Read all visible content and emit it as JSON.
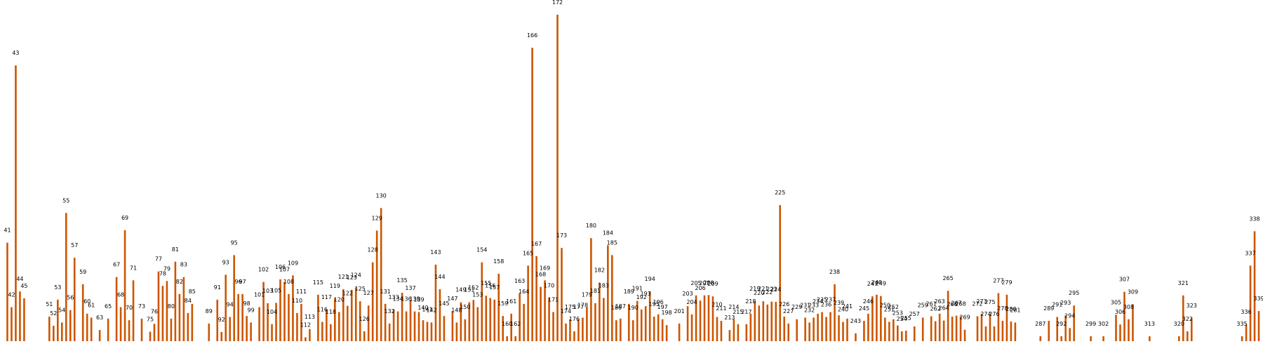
{
  "colors": {
    "bar": "#cc5500",
    "label": "#000000",
    "background": "#ffffff"
  },
  "chart_data": {
    "type": "bar",
    "title": "",
    "xlabel": "",
    "ylabel": "",
    "grid": false,
    "axes_visible": false,
    "ylim": [
      0,
      1
    ],
    "x_range": [
      39.25,
      340.0
    ],
    "points": [
      [
        41,
        0.301
      ],
      [
        42,
        0.104
      ],
      [
        43,
        0.843
      ],
      [
        44,
        0.152
      ],
      [
        45,
        0.131
      ],
      [
        51,
        0.075
      ],
      [
        52,
        0.047
      ],
      [
        53,
        0.127
      ],
      [
        54,
        0.057
      ],
      [
        55,
        0.392
      ],
      [
        56,
        0.095
      ],
      [
        57,
        0.255
      ],
      [
        59,
        0.174
      ],
      [
        60,
        0.084
      ],
      [
        61,
        0.072
      ],
      [
        63,
        0.034
      ],
      [
        65,
        0.069
      ],
      [
        67,
        0.196
      ],
      [
        68,
        0.104
      ],
      [
        69,
        0.339
      ],
      [
        70,
        0.064
      ],
      [
        71,
        0.186
      ],
      [
        73,
        0.069
      ],
      [
        75,
        0.029
      ],
      [
        76,
        0.053
      ],
      [
        77,
        0.213
      ],
      [
        78,
        0.169
      ],
      [
        79,
        0.184
      ],
      [
        80,
        0.069
      ],
      [
        81,
        0.243
      ],
      [
        82,
        0.144
      ],
      [
        83,
        0.196
      ],
      [
        84,
        0.086
      ],
      [
        85,
        0.114
      ],
      [
        89,
        0.054
      ],
      [
        91,
        0.127
      ],
      [
        92,
        0.028
      ],
      [
        93,
        0.203
      ],
      [
        94,
        0.074
      ],
      [
        95,
        0.263
      ],
      [
        96,
        0.144
      ],
      [
        97,
        0.144
      ],
      [
        98,
        0.077
      ],
      [
        99,
        0.057
      ],
      [
        101,
        0.104
      ],
      [
        102,
        0.181
      ],
      [
        103,
        0.116
      ],
      [
        104,
        0.052
      ],
      [
        105,
        0.117
      ],
      [
        106,
        0.189
      ],
      [
        107,
        0.181
      ],
      [
        108,
        0.144
      ],
      [
        109,
        0.201
      ],
      [
        110,
        0.086
      ],
      [
        111,
        0.114
      ],
      [
        112,
        0.012
      ],
      [
        113,
        0.037
      ],
      [
        115,
        0.142
      ],
      [
        116,
        0.059
      ],
      [
        117,
        0.097
      ],
      [
        118,
        0.052
      ],
      [
        119,
        0.131
      ],
      [
        120,
        0.089
      ],
      [
        121,
        0.159
      ],
      [
        122,
        0.108
      ],
      [
        123,
        0.157
      ],
      [
        124,
        0.164
      ],
      [
        125,
        0.122
      ],
      [
        126,
        0.03
      ],
      [
        127,
        0.109
      ],
      [
        128,
        0.241
      ],
      [
        129,
        0.338
      ],
      [
        130,
        0.407
      ],
      [
        131,
        0.114
      ],
      [
        132,
        0.054
      ],
      [
        133,
        0.097
      ],
      [
        134,
        0.091
      ],
      [
        135,
        0.148
      ],
      [
        136,
        0.091
      ],
      [
        137,
        0.124
      ],
      [
        138,
        0.091
      ],
      [
        139,
        0.089
      ],
      [
        140,
        0.064
      ],
      [
        141,
        0.059
      ],
      [
        142,
        0.057
      ],
      [
        143,
        0.234
      ],
      [
        144,
        0.159
      ],
      [
        145,
        0.077
      ],
      [
        147,
        0.092
      ],
      [
        148,
        0.057
      ],
      [
        149,
        0.119
      ],
      [
        150,
        0.067
      ],
      [
        151,
        0.119
      ],
      [
        152,
        0.126
      ],
      [
        153,
        0.104
      ],
      [
        154,
        0.241
      ],
      [
        155,
        0.139
      ],
      [
        156,
        0.132
      ],
      [
        157,
        0.127
      ],
      [
        158,
        0.206
      ],
      [
        159,
        0.077
      ],
      [
        160,
        0.015
      ],
      [
        161,
        0.084
      ],
      [
        162,
        0.015
      ],
      [
        163,
        0.146
      ],
      [
        164,
        0.114
      ],
      [
        165,
        0.231
      ],
      [
        166,
        0.897
      ],
      [
        167,
        0.26
      ],
      [
        168,
        0.166
      ],
      [
        169,
        0.186
      ],
      [
        170,
        0.132
      ],
      [
        171,
        0.089
      ],
      [
        172,
        0.998
      ],
      [
        173,
        0.285
      ],
      [
        174,
        0.054
      ],
      [
        175,
        0.067
      ],
      [
        176,
        0.03
      ],
      [
        177,
        0.067
      ],
      [
        178,
        0.072
      ],
      [
        179,
        0.104
      ],
      [
        180,
        0.315
      ],
      [
        181,
        0.116
      ],
      [
        182,
        0.179
      ],
      [
        183,
        0.132
      ],
      [
        184,
        0.293
      ],
      [
        185,
        0.263
      ],
      [
        186,
        0.064
      ],
      [
        187,
        0.069
      ],
      [
        189,
        0.114
      ],
      [
        190,
        0.064
      ],
      [
        191,
        0.123
      ],
      [
        192,
        0.097
      ],
      [
        193,
        0.107
      ],
      [
        194,
        0.152
      ],
      [
        195,
        0.075
      ],
      [
        196,
        0.082
      ],
      [
        197,
        0.067
      ],
      [
        198,
        0.049
      ],
      [
        201,
        0.054
      ],
      [
        203,
        0.107
      ],
      [
        204,
        0.082
      ],
      [
        205,
        0.14
      ],
      [
        206,
        0.124
      ],
      [
        207,
        0.14
      ],
      [
        208,
        0.141
      ],
      [
        209,
        0.137
      ],
      [
        210,
        0.074
      ],
      [
        211,
        0.062
      ],
      [
        213,
        0.034
      ],
      [
        214,
        0.067
      ],
      [
        215,
        0.052
      ],
      [
        217,
        0.052
      ],
      [
        218,
        0.084
      ],
      [
        219,
        0.122
      ],
      [
        220,
        0.109
      ],
      [
        221,
        0.122
      ],
      [
        222,
        0.112
      ],
      [
        223,
        0.121
      ],
      [
        224,
        0.12
      ],
      [
        225,
        0.416
      ],
      [
        226,
        0.075
      ],
      [
        227,
        0.054
      ],
      [
        229,
        0.067
      ],
      [
        231,
        0.072
      ],
      [
        232,
        0.057
      ],
      [
        233,
        0.072
      ],
      [
        234,
        0.084
      ],
      [
        235,
        0.089
      ],
      [
        236,
        0.074
      ],
      [
        237,
        0.089
      ],
      [
        238,
        0.174
      ],
      [
        239,
        0.079
      ],
      [
        240,
        0.059
      ],
      [
        241,
        0.069
      ],
      [
        243,
        0.024
      ],
      [
        245,
        0.062
      ],
      [
        246,
        0.084
      ],
      [
        247,
        0.137
      ],
      [
        248,
        0.142
      ],
      [
        249,
        0.138
      ],
      [
        250,
        0.072
      ],
      [
        251,
        0.059
      ],
      [
        252,
        0.067
      ],
      [
        253,
        0.048
      ],
      [
        254,
        0.03
      ],
      [
        255,
        0.032
      ],
      [
        257,
        0.045
      ],
      [
        259,
        0.072
      ],
      [
        261,
        0.076
      ],
      [
        262,
        0.061
      ],
      [
        263,
        0.084
      ],
      [
        264,
        0.063
      ],
      [
        265,
        0.154
      ],
      [
        266,
        0.075
      ],
      [
        267,
        0.078
      ],
      [
        268,
        0.076
      ],
      [
        269,
        0.035
      ],
      [
        272,
        0.076
      ],
      [
        273,
        0.084
      ],
      [
        274,
        0.045
      ],
      [
        275,
        0.082
      ],
      [
        276,
        0.045
      ],
      [
        277,
        0.147
      ],
      [
        278,
        0.062
      ],
      [
        279,
        0.142
      ],
      [
        280,
        0.06
      ],
      [
        281,
        0.057
      ],
      [
        287,
        0.015
      ],
      [
        289,
        0.062
      ],
      [
        291,
        0.074
      ],
      [
        292,
        0.015
      ],
      [
        293,
        0.079
      ],
      [
        294,
        0.04
      ],
      [
        295,
        0.109
      ],
      [
        299,
        0.015
      ],
      [
        302,
        0.015
      ],
      [
        305,
        0.081
      ],
      [
        306,
        0.051
      ],
      [
        307,
        0.151
      ],
      [
        308,
        0.067
      ],
      [
        309,
        0.113
      ],
      [
        313,
        0.015
      ],
      [
        320,
        0.015
      ],
      [
        321,
        0.14
      ],
      [
        322,
        0.03
      ],
      [
        323,
        0.071
      ],
      [
        335,
        0.015
      ],
      [
        336,
        0.051
      ],
      [
        337,
        0.231
      ],
      [
        338,
        0.336
      ],
      [
        339,
        0.092
      ]
    ]
  }
}
